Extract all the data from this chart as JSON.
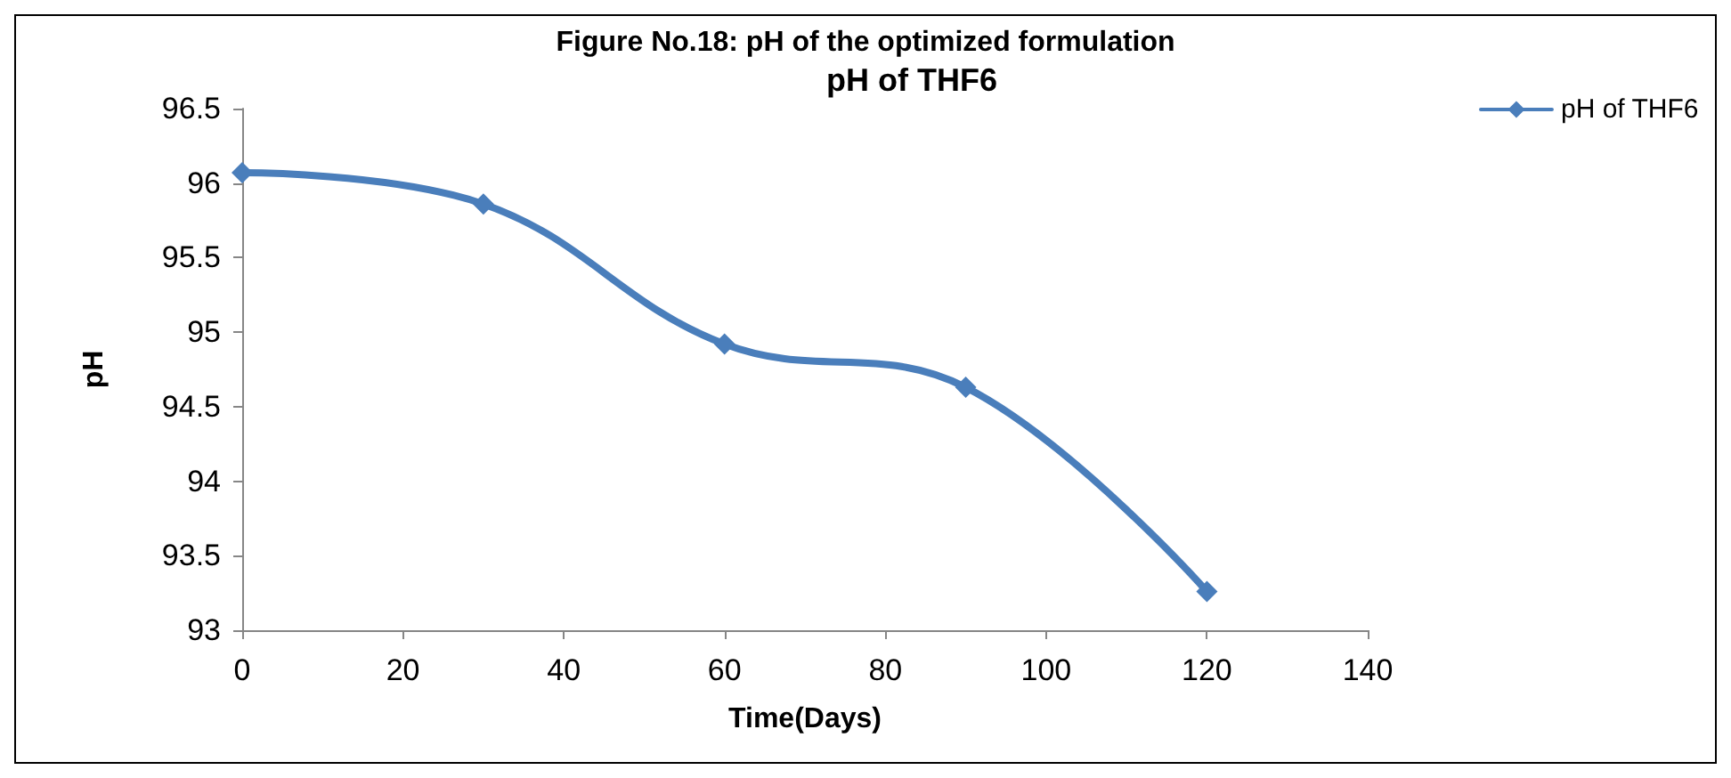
{
  "chart_data": {
    "type": "line",
    "title": "Figure No.18: pH of the optimized formulation",
    "subtitle": "pH of THF6",
    "xlabel": "Time(Days)",
    "ylabel": "pH",
    "x": [
      0,
      30,
      60,
      90,
      120
    ],
    "series": [
      {
        "name": "pH of THF6",
        "color": "#4a7ebb",
        "values": [
          96.07,
          95.86,
          94.92,
          94.63,
          93.26
        ]
      }
    ],
    "xlim": [
      0,
      140
    ],
    "xticks": [
      0,
      20,
      40,
      60,
      80,
      100,
      120,
      140
    ],
    "ylim": [
      93,
      96.5
    ],
    "yticks": [
      93,
      93.5,
      94,
      94.5,
      95,
      95.5,
      96,
      96.5
    ],
    "grid": false,
    "legend": "top right",
    "marker": "diamond",
    "line_style": "solid"
  }
}
